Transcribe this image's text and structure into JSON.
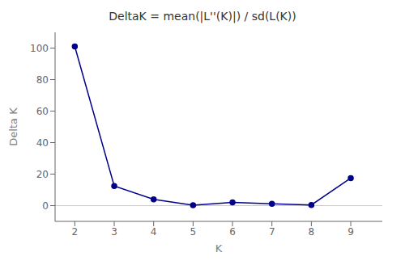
{
  "chart_data": {
    "type": "line",
    "title": "DeltaK = mean(|L''(K)|) / sd(L(K))",
    "xlabel": "K",
    "ylabel": "Delta K",
    "x": [
      2,
      3,
      4,
      5,
      6,
      7,
      8,
      9
    ],
    "values": [
      101.0,
      12.5,
      4.0,
      0.3,
      2.0,
      1.2,
      0.4,
      17.5
    ],
    "color": "#00008B",
    "marker": "circle",
    "xlim": [
      1.5,
      9.8
    ],
    "ylim": [
      -10,
      110
    ],
    "xticks": [
      2,
      3,
      4,
      5,
      6,
      7,
      8,
      9
    ],
    "yticks": [
      0,
      20,
      40,
      60,
      80,
      100
    ],
    "hline_y": 0,
    "grid": false
  }
}
